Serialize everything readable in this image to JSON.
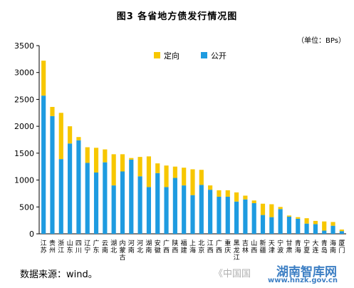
{
  "chart_data": {
    "type": "bar",
    "stacked": true,
    "title": "图3   各省地方债发行情况图",
    "unit": "（单位：BPs）",
    "ylim": [
      0,
      3500
    ],
    "yticks": [
      0,
      500,
      1000,
      1500,
      2000,
      2500,
      3000,
      3500
    ],
    "legend_position": "top-center",
    "categories": [
      "江苏",
      "贵州",
      "浙江",
      "山东",
      "四川",
      "辽宁",
      "广东",
      "云南",
      "湖北",
      "内蒙古",
      "河南",
      "河北",
      "湖南",
      "安徽",
      "广西",
      "陕西",
      "福建",
      "上海",
      "北京",
      "江西",
      "广西",
      "重庆",
      "黑龙江",
      "吉林",
      "山西",
      "新疆",
      "天津",
      "宁波",
      "甘肃",
      "青海",
      "宁夏",
      "大连",
      "青岛",
      "海南",
      "厦门"
    ],
    "series": [
      {
        "name": "公开",
        "color": "#1e9be0",
        "values": [
          2570,
          2190,
          1390,
          1680,
          1740,
          1320,
          1140,
          1330,
          900,
          1160,
          1380,
          1070,
          870,
          1130,
          870,
          1040,
          900,
          720,
          910,
          820,
          690,
          690,
          600,
          640,
          570,
          350,
          310,
          460,
          320,
          280,
          190,
          180,
          60,
          150,
          50
        ]
      },
      {
        "name": "定向",
        "color": "#f7c700",
        "values": [
          650,
          170,
          860,
          320,
          60,
          290,
          460,
          240,
          580,
          320,
          30,
          360,
          570,
          180,
          400,
          210,
          330,
          480,
          280,
          80,
          120,
          120,
          170,
          70,
          50,
          210,
          240,
          40,
          20,
          30,
          100,
          60,
          170,
          70,
          30
        ]
      }
    ]
  },
  "source_label": "数据来源：wind。",
  "watermark": {
    "wechat_text": "《中国国",
    "site_name": "湖南智库网",
    "site_url": "www.hnzk.gov.cn"
  }
}
